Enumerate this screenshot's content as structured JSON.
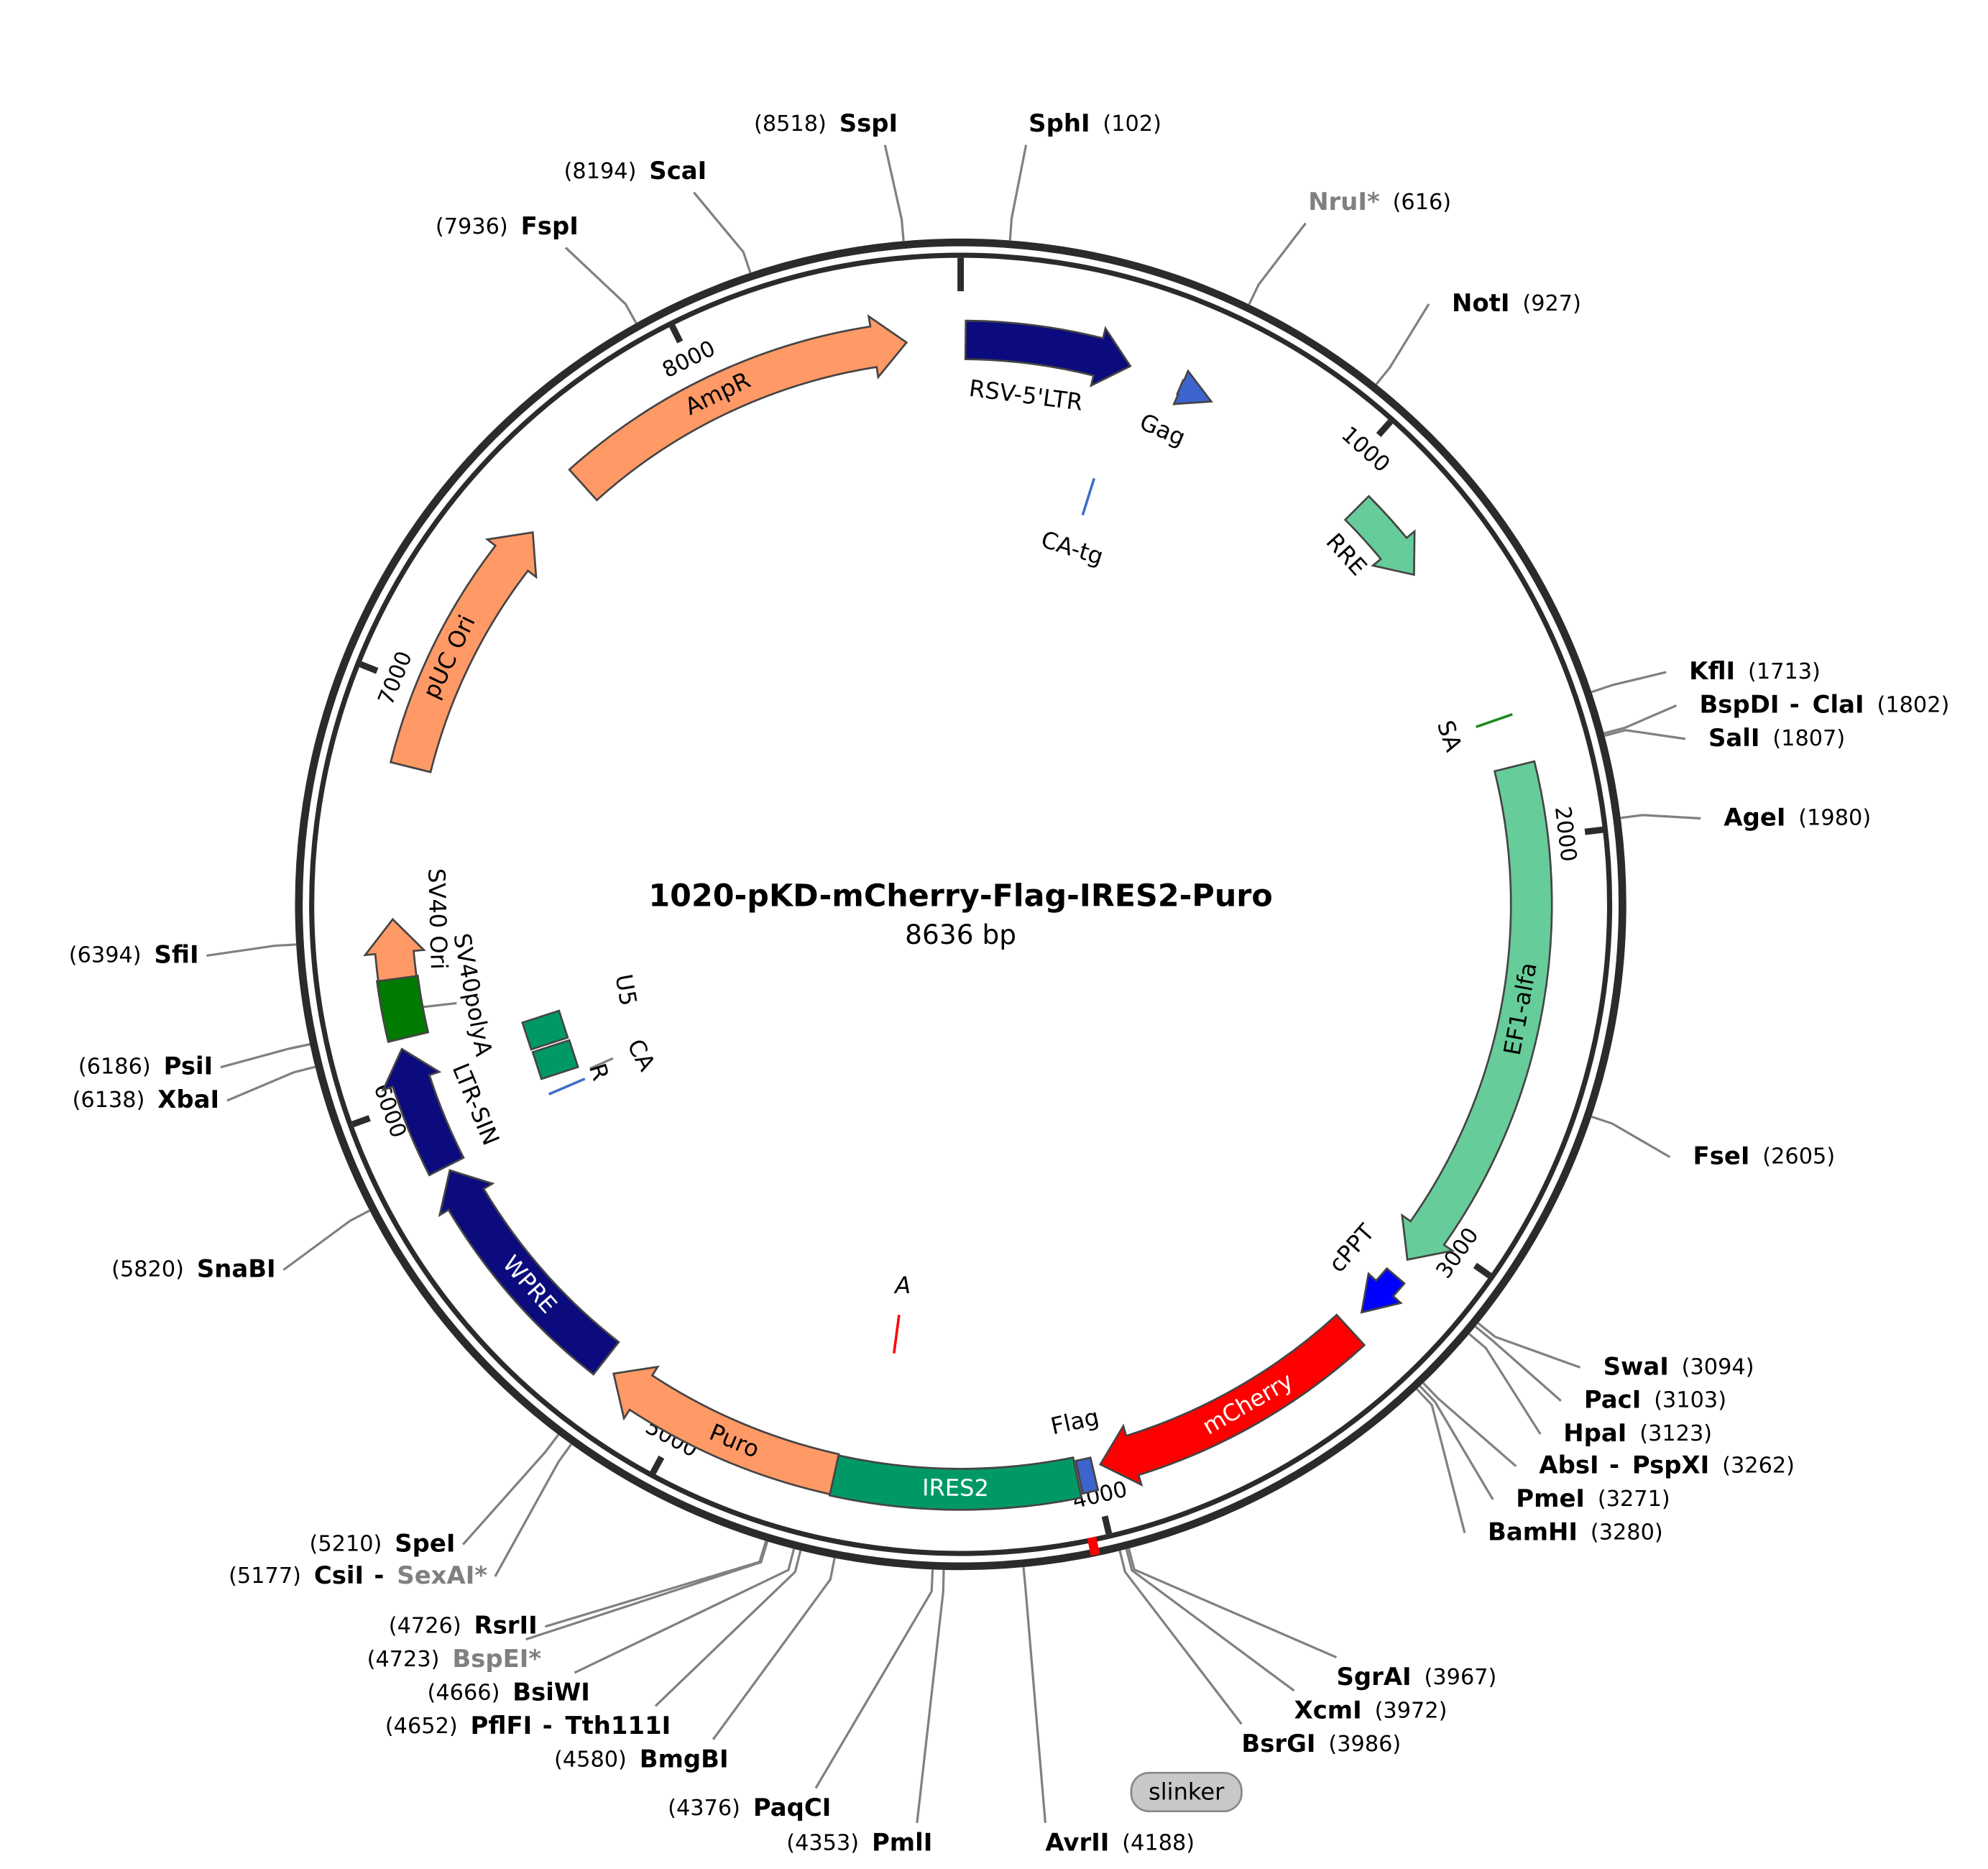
{
  "title": "1020-pKD-mCherry-Flag-IRES2-Puro",
  "length": {
    "value": 8636,
    "label": "8636 bp"
  },
  "ticks": [
    1000,
    2000,
    3000,
    4000,
    5000,
    6000,
    7000,
    8000
  ],
  "features": [
    {
      "name": "RSV-5'LTR",
      "color": "#0b0b7d"
    },
    {
      "name": "Gag",
      "color": "#3d63cc"
    },
    {
      "name": "CA-tg",
      "color": "#3d6ecc"
    },
    {
      "name": "RRE",
      "color": "#66cc99"
    },
    {
      "name": "SA",
      "color": "#1a8a1a"
    },
    {
      "name": "EF1-alfa",
      "color": "#66cc99"
    },
    {
      "name": "cPPT",
      "color": "#0000ff"
    },
    {
      "name": "mCherry",
      "color": "#ff0000",
      "label_color": "#ffffff"
    },
    {
      "name": "Flag",
      "color": "#3d63cc"
    },
    {
      "name": "IRES2",
      "color": "#009966",
      "label_color": "#ffffff"
    },
    {
      "name": "Puro",
      "color": "#ff9966"
    },
    {
      "name": "WPRE",
      "color": "#0b0b7d",
      "label_color": "#ffffff"
    },
    {
      "name": "LTR-SIN",
      "color": "#0b0b7d"
    },
    {
      "name": "SV40polyA",
      "color": "#007a00"
    },
    {
      "name": "SV40 Ori",
      "color": "#ff9966"
    },
    {
      "name": "pUC Ori",
      "color": "#ff9966"
    },
    {
      "name": "AmpR",
      "color": "#ff9966"
    },
    {
      "name": "U5",
      "color": "#009966"
    },
    {
      "name": "R",
      "color": "#009966"
    },
    {
      "name": "CA",
      "color": "#3d6ecc"
    },
    {
      "name": "A",
      "color": "#ff0000"
    },
    {
      "name": "slinker",
      "color": "#c8c8c8"
    }
  ],
  "sites": [
    {
      "names": [
        "SspI"
      ],
      "name_colors": [
        "#000000"
      ],
      "position": {
        "value": 8518,
        "label": "(8518)"
      }
    },
    {
      "names": [
        "SphI"
      ],
      "name_colors": [
        "#000000"
      ],
      "position": {
        "value": 102,
        "label": "(102)"
      }
    },
    {
      "names": [
        "NruI*"
      ],
      "name_colors": [
        "#808080"
      ],
      "position": {
        "value": 616,
        "label": "(616)"
      }
    },
    {
      "names": [
        "NotI"
      ],
      "name_colors": [
        "#000000"
      ],
      "position": {
        "value": 927,
        "label": "(927)"
      }
    },
    {
      "names": [
        "KflI"
      ],
      "name_colors": [
        "#000000"
      ],
      "position": {
        "value": 1713,
        "label": "(1713)"
      }
    },
    {
      "names": [
        "BspDI",
        "ClaI"
      ],
      "separator": "-",
      "name_colors": [
        "#000000",
        "#000000"
      ],
      "position": {
        "value": 1802,
        "label": "(1802)"
      }
    },
    {
      "names": [
        "SalI"
      ],
      "name_colors": [
        "#000000"
      ],
      "position": {
        "value": 1807,
        "label": "(1807)"
      }
    },
    {
      "names": [
        "AgeI"
      ],
      "name_colors": [
        "#000000"
      ],
      "position": {
        "value": 1980,
        "label": "(1980)"
      }
    },
    {
      "names": [
        "FseI"
      ],
      "name_colors": [
        "#000000"
      ],
      "position": {
        "value": 2605,
        "label": "(2605)"
      }
    },
    {
      "names": [
        "SwaI"
      ],
      "name_colors": [
        "#000000"
      ],
      "position": {
        "value": 3094,
        "label": "(3094)"
      }
    },
    {
      "names": [
        "PacI"
      ],
      "name_colors": [
        "#000000"
      ],
      "position": {
        "value": 3103,
        "label": "(3103)"
      }
    },
    {
      "names": [
        "HpaI"
      ],
      "name_colors": [
        "#000000"
      ],
      "position": {
        "value": 3123,
        "label": "(3123)"
      }
    },
    {
      "names": [
        "AbsI",
        "PspXI"
      ],
      "separator": "-",
      "name_colors": [
        "#000000",
        "#000000"
      ],
      "position": {
        "value": 3262,
        "label": "(3262)"
      }
    },
    {
      "names": [
        "PmeI"
      ],
      "name_colors": [
        "#000000"
      ],
      "position": {
        "value": 3271,
        "label": "(3271)"
      }
    },
    {
      "names": [
        "BamHI"
      ],
      "name_colors": [
        "#000000"
      ],
      "position": {
        "value": 3280,
        "label": "(3280)"
      }
    },
    {
      "names": [
        "SgrAI"
      ],
      "name_colors": [
        "#000000"
      ],
      "position": {
        "value": 3967,
        "label": "(3967)"
      }
    },
    {
      "names": [
        "XcmI"
      ],
      "name_colors": [
        "#000000"
      ],
      "position": {
        "value": 3972,
        "label": "(3972)"
      }
    },
    {
      "names": [
        "BsrGI"
      ],
      "name_colors": [
        "#000000"
      ],
      "position": {
        "value": 3986,
        "label": "(3986)"
      }
    },
    {
      "names": [
        "AvrII"
      ],
      "name_colors": [
        "#000000"
      ],
      "position": {
        "value": 4188,
        "label": "(4188)"
      }
    },
    {
      "names": [
        "PmlI"
      ],
      "name_colors": [
        "#000000"
      ],
      "position": {
        "value": 4353,
        "label": "(4353)"
      }
    },
    {
      "names": [
        "PaqCI"
      ],
      "name_colors": [
        "#000000"
      ],
      "position": {
        "value": 4376,
        "label": "(4376)"
      }
    },
    {
      "names": [
        "BmgBI"
      ],
      "name_colors": [
        "#000000"
      ],
      "position": {
        "value": 4580,
        "label": "(4580)"
      }
    },
    {
      "names": [
        "PflFI",
        "Tth111I"
      ],
      "separator": "-",
      "name_colors": [
        "#000000",
        "#000000"
      ],
      "position": {
        "value": 4652,
        "label": "(4652)"
      }
    },
    {
      "names": [
        "BsiWI"
      ],
      "name_colors": [
        "#000000"
      ],
      "position": {
        "value": 4666,
        "label": "(4666)"
      }
    },
    {
      "names": [
        "BspEI*"
      ],
      "name_colors": [
        "#808080"
      ],
      "position": {
        "value": 4723,
        "label": "(4723)"
      }
    },
    {
      "names": [
        "RsrII"
      ],
      "name_colors": [
        "#000000"
      ],
      "position": {
        "value": 4726,
        "label": "(4726)"
      }
    },
    {
      "names": [
        "CsiI",
        "SexAI*"
      ],
      "separator": "-",
      "name_colors": [
        "#000000",
        "#808080"
      ],
      "position": {
        "value": 5177,
        "label": "(5177)"
      }
    },
    {
      "names": [
        "SpeI"
      ],
      "name_colors": [
        "#000000"
      ],
      "position": {
        "value": 5210,
        "label": "(5210)"
      }
    },
    {
      "names": [
        "SnaBI"
      ],
      "name_colors": [
        "#000000"
      ],
      "position": {
        "value": 5820,
        "label": "(5820)"
      }
    },
    {
      "names": [
        "XbaI"
      ],
      "name_colors": [
        "#000000"
      ],
      "position": {
        "value": 6138,
        "label": "(6138)"
      }
    },
    {
      "names": [
        "PsiI"
      ],
      "name_colors": [
        "#000000"
      ],
      "position": {
        "value": 6186,
        "label": "(6186)"
      }
    },
    {
      "names": [
        "SfiI"
      ],
      "name_colors": [
        "#000000"
      ],
      "position": {
        "value": 6394,
        "label": "(6394)"
      }
    },
    {
      "names": [
        "FspI"
      ],
      "name_colors": [
        "#000000"
      ],
      "position": {
        "value": 7936,
        "label": "(7936)"
      }
    },
    {
      "names": [
        "ScaI"
      ],
      "name_colors": [
        "#000000"
      ],
      "position": {
        "value": 8194,
        "label": "(8194)"
      }
    }
  ]
}
